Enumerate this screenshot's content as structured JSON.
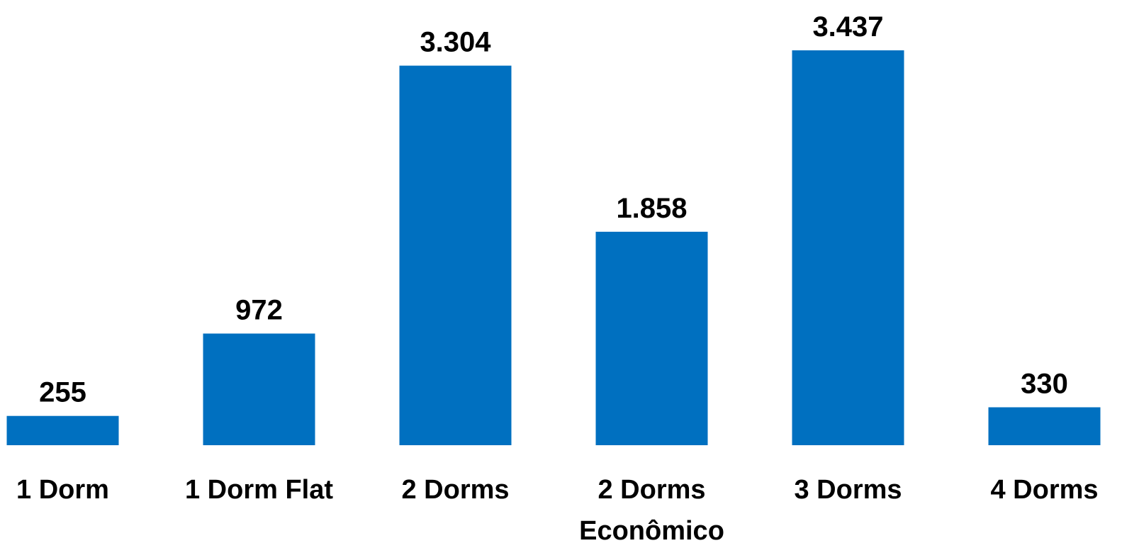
{
  "colors": {
    "bar": "#0070C0",
    "text": "#000000",
    "background": "#FFFFFF"
  },
  "chart_data": {
    "type": "bar",
    "categories": [
      [
        "1 Dorm"
      ],
      [
        "1 Dorm Flat"
      ],
      [
        "2 Dorms"
      ],
      [
        "2 Dorms",
        "Econômico"
      ],
      [
        "3 Dorms"
      ],
      [
        "4 Dorms"
      ]
    ],
    "values": [
      255,
      972,
      3304,
      1858,
      3437,
      330
    ],
    "value_labels": [
      "255",
      "972",
      "3.304",
      "1.858",
      "3.437",
      "330"
    ],
    "ylim": [
      0,
      3437
    ],
    "grid": false,
    "legend": "none",
    "data_labels": "above-bars"
  }
}
